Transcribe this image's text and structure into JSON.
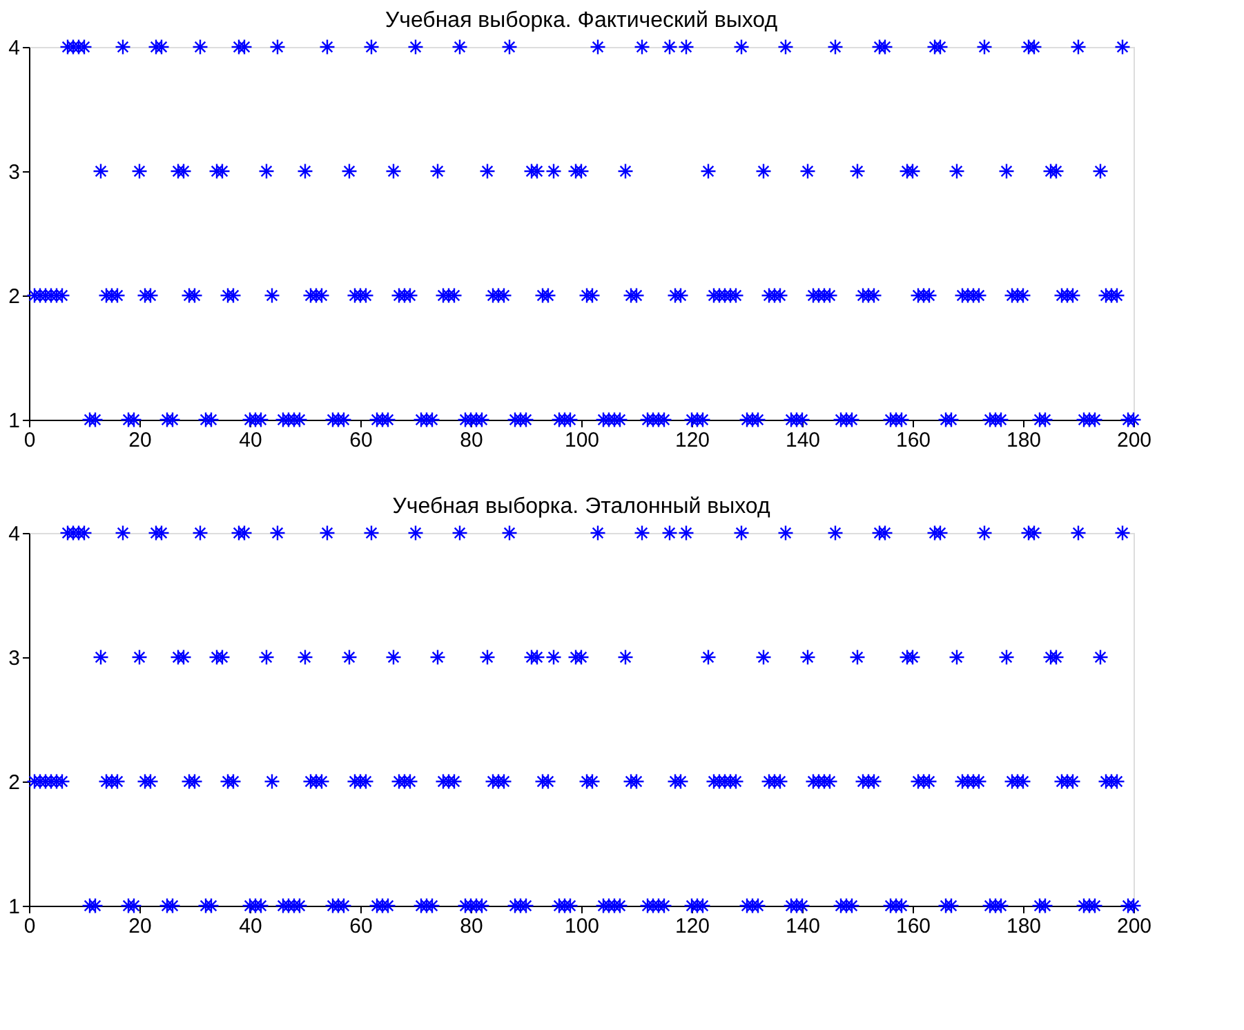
{
  "chart_data": [
    {
      "type": "scatter",
      "title": "Учебная выборка. Фактический выход",
      "marker": "cross",
      "grid": false,
      "xlim": [
        0,
        200
      ],
      "xticks": [
        0,
        20,
        40,
        60,
        80,
        100,
        120,
        140,
        160,
        180,
        200
      ],
      "ylim": [
        1,
        4
      ],
      "yticks": [
        1,
        2,
        3,
        4
      ],
      "x": [
        1,
        2,
        3,
        4,
        5,
        6,
        7,
        8,
        9,
        10,
        11,
        12,
        13,
        14,
        15,
        16,
        17,
        18,
        19,
        20,
        21,
        22,
        23,
        24,
        25,
        26,
        27,
        28,
        29,
        30,
        31,
        32,
        33,
        34,
        35,
        36,
        37,
        38,
        39,
        40,
        41,
        42,
        43,
        44,
        45,
        46,
        47,
        48,
        49,
        50,
        51,
        52,
        53,
        54,
        55,
        56,
        57,
        58,
        59,
        60,
        61,
        62,
        63,
        64,
        65,
        66,
        67,
        68,
        69,
        70,
        71,
        72,
        73,
        74,
        75,
        76,
        77,
        78,
        79,
        80,
        81,
        82,
        83,
        84,
        85,
        86,
        87,
        88,
        89,
        90,
        91,
        92,
        93,
        94,
        95,
        96,
        97,
        98,
        99,
        100,
        101,
        102,
        103,
        104,
        105,
        106,
        107,
        108,
        109,
        110,
        111,
        112,
        113,
        114,
        115,
        116,
        117,
        118,
        119,
        120,
        121,
        122,
        123,
        124,
        125,
        126,
        127,
        128,
        129,
        130,
        131,
        132,
        133,
        134,
        135,
        136,
        137,
        138,
        139,
        140,
        141,
        142,
        143,
        144,
        145,
        146,
        147,
        148,
        149,
        150,
        151,
        152,
        153,
        154,
        155,
        156,
        157,
        158,
        159,
        160,
        161,
        162,
        163,
        164,
        165,
        166,
        167,
        168,
        169,
        170,
        171,
        172,
        173,
        174,
        175,
        176,
        177,
        178,
        179,
        180,
        181,
        182,
        183,
        184,
        185,
        186,
        187,
        188,
        189,
        190,
        191,
        192,
        193,
        194,
        195,
        196,
        197,
        198,
        199,
        200
      ],
      "series": [
        {
          "color": "#0000ff",
          "values": [
            2,
            2,
            2,
            2,
            2,
            2,
            4,
            4,
            4,
            4,
            1,
            1,
            3,
            2,
            2,
            2,
            4,
            1,
            1,
            3,
            2,
            2,
            4,
            4,
            1,
            1,
            3,
            3,
            2,
            2,
            4,
            1,
            1,
            3,
            3,
            2,
            2,
            4,
            4,
            1,
            1,
            1,
            3,
            2,
            4,
            1,
            1,
            1,
            1,
            3,
            2,
            2,
            2,
            4,
            1,
            1,
            1,
            3,
            2,
            2,
            2,
            4,
            1,
            1,
            1,
            3,
            2,
            2,
            2,
            4,
            1,
            1,
            1,
            3,
            2,
            2,
            2,
            4,
            1,
            1,
            1,
            1,
            3,
            2,
            2,
            2,
            4,
            1,
            1,
            1,
            3,
            3,
            2,
            2,
            3,
            1,
            1,
            1,
            3,
            3,
            2,
            2,
            4,
            1,
            1,
            1,
            1,
            3,
            2,
            2,
            4,
            1,
            1,
            1,
            1,
            4,
            2,
            2,
            4,
            1,
            1,
            1,
            3,
            2,
            2,
            2,
            2,
            2,
            4,
            1,
            1,
            1,
            3,
            2,
            2,
            2,
            4,
            1,
            1,
            1,
            3,
            2,
            2,
            2,
            2,
            4,
            1,
            1,
            1,
            3,
            2,
            2,
            2,
            4,
            4,
            1,
            1,
            1,
            3,
            3,
            2,
            2,
            2,
            4,
            4,
            1,
            1,
            3,
            2,
            2,
            2,
            2,
            4,
            1,
            1,
            1,
            3,
            2,
            2,
            2,
            4,
            4,
            1,
            1,
            3,
            3,
            2,
            2,
            2,
            4,
            1,
            1,
            1,
            3,
            2,
            2,
            2,
            4,
            1,
            1
          ]
        }
      ]
    },
    {
      "type": "scatter",
      "title": "Учебная выборка. Эталонный выход",
      "marker": "cross",
      "grid": false,
      "xlim": [
        0,
        200
      ],
      "xticks": [
        0,
        20,
        40,
        60,
        80,
        100,
        120,
        140,
        160,
        180,
        200
      ],
      "ylim": [
        1,
        4
      ],
      "yticks": [
        1,
        2,
        3,
        4
      ],
      "x": [
        1,
        2,
        3,
        4,
        5,
        6,
        7,
        8,
        9,
        10,
        11,
        12,
        13,
        14,
        15,
        16,
        17,
        18,
        19,
        20,
        21,
        22,
        23,
        24,
        25,
        26,
        27,
        28,
        29,
        30,
        31,
        32,
        33,
        34,
        35,
        36,
        37,
        38,
        39,
        40,
        41,
        42,
        43,
        44,
        45,
        46,
        47,
        48,
        49,
        50,
        51,
        52,
        53,
        54,
        55,
        56,
        57,
        58,
        59,
        60,
        61,
        62,
        63,
        64,
        65,
        66,
        67,
        68,
        69,
        70,
        71,
        72,
        73,
        74,
        75,
        76,
        77,
        78,
        79,
        80,
        81,
        82,
        83,
        84,
        85,
        86,
        87,
        88,
        89,
        90,
        91,
        92,
        93,
        94,
        95,
        96,
        97,
        98,
        99,
        100,
        101,
        102,
        103,
        104,
        105,
        106,
        107,
        108,
        109,
        110,
        111,
        112,
        113,
        114,
        115,
        116,
        117,
        118,
        119,
        120,
        121,
        122,
        123,
        124,
        125,
        126,
        127,
        128,
        129,
        130,
        131,
        132,
        133,
        134,
        135,
        136,
        137,
        138,
        139,
        140,
        141,
        142,
        143,
        144,
        145,
        146,
        147,
        148,
        149,
        150,
        151,
        152,
        153,
        154,
        155,
        156,
        157,
        158,
        159,
        160,
        161,
        162,
        163,
        164,
        165,
        166,
        167,
        168,
        169,
        170,
        171,
        172,
        173,
        174,
        175,
        176,
        177,
        178,
        179,
        180,
        181,
        182,
        183,
        184,
        185,
        186,
        187,
        188,
        189,
        190,
        191,
        192,
        193,
        194,
        195,
        196,
        197,
        198,
        199,
        200
      ],
      "series": [
        {
          "color": "#0000ff",
          "values": [
            2,
            2,
            2,
            2,
            2,
            2,
            4,
            4,
            4,
            4,
            1,
            1,
            3,
            2,
            2,
            2,
            4,
            1,
            1,
            3,
            2,
            2,
            4,
            4,
            1,
            1,
            3,
            3,
            2,
            2,
            4,
            1,
            1,
            3,
            3,
            2,
            2,
            4,
            4,
            1,
            1,
            1,
            3,
            2,
            4,
            1,
            1,
            1,
            1,
            3,
            2,
            2,
            2,
            4,
            1,
            1,
            1,
            3,
            2,
            2,
            2,
            4,
            1,
            1,
            1,
            3,
            2,
            2,
            2,
            4,
            1,
            1,
            1,
            3,
            2,
            2,
            2,
            4,
            1,
            1,
            1,
            1,
            3,
            2,
            2,
            2,
            4,
            1,
            1,
            1,
            3,
            3,
            2,
            2,
            3,
            1,
            1,
            1,
            3,
            3,
            2,
            2,
            4,
            1,
            1,
            1,
            1,
            3,
            2,
            2,
            4,
            1,
            1,
            1,
            1,
            4,
            2,
            2,
            4,
            1,
            1,
            1,
            3,
            2,
            2,
            2,
            2,
            2,
            4,
            1,
            1,
            1,
            3,
            2,
            2,
            2,
            4,
            1,
            1,
            1,
            3,
            2,
            2,
            2,
            2,
            4,
            1,
            1,
            1,
            3,
            2,
            2,
            2,
            4,
            4,
            1,
            1,
            1,
            3,
            3,
            2,
            2,
            2,
            4,
            4,
            1,
            1,
            3,
            2,
            2,
            2,
            2,
            4,
            1,
            1,
            1,
            3,
            2,
            2,
            2,
            4,
            4,
            1,
            1,
            3,
            3,
            2,
            2,
            2,
            4,
            1,
            1,
            1,
            3,
            2,
            2,
            2,
            4,
            1,
            1
          ]
        }
      ]
    }
  ]
}
